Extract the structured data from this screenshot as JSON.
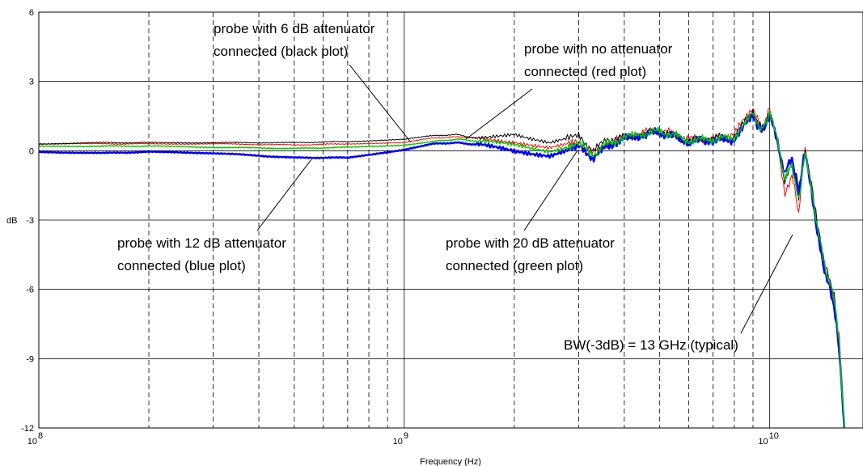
{
  "chart_data": {
    "type": "line",
    "title": "",
    "xlabel": "Frequency (Hz)",
    "ylabel": "dB",
    "xscale": "log",
    "xlim": [
      100000000,
      18000000000
    ],
    "ylim": [
      -12,
      6
    ],
    "grid": true,
    "y_ticks": [
      "6",
      "3",
      "0",
      "-3",
      "-6",
      "-9",
      "-12"
    ],
    "x_ticks": [
      {
        "base": "10",
        "exp": "8"
      },
      {
        "base": "10",
        "exp": "9"
      },
      {
        "base": "10",
        "exp": "10"
      }
    ],
    "series": [
      {
        "color": "#ff0000",
        "line_width": 1,
        "x": [
          100000000,
          150000000,
          200000000,
          300000000,
          500000000,
          700000000,
          1000000000,
          1200000000,
          1400000000,
          1600000000,
          2000000000,
          2500000000,
          3000000000,
          3300000000,
          3600000000,
          4000000000,
          4500000000,
          5000000000,
          5500000000,
          6000000000,
          7000000000,
          8000000000,
          9000000000,
          9500000000,
          10000000000,
          10500000000,
          11000000000,
          11500000000,
          12000000000,
          12500000000,
          13000000000,
          13500000000,
          14000000000,
          14500000000,
          15000000000,
          15500000000,
          16000000000
        ],
        "y": [
          0.3,
          0.3,
          0.3,
          0.3,
          0.25,
          0.3,
          0.35,
          0.55,
          0.6,
          0.55,
          0.4,
          0.1,
          0.35,
          -0.1,
          0.3,
          0.6,
          0.8,
          0.9,
          0.7,
          0.5,
          0.5,
          0.7,
          1.9,
          0.9,
          1.8,
          0.5,
          -2.0,
          -1.0,
          -2.7,
          0.2,
          -1.5,
          -3.5,
          -4.8,
          -5.7,
          -6.5,
          -8.0,
          -12.0
        ]
      },
      {
        "color": "#000000",
        "line_width": 1,
        "x": [
          100000000,
          150000000,
          200000000,
          300000000,
          500000000,
          700000000,
          1000000000,
          1200000000,
          1400000000,
          1600000000,
          2000000000,
          2500000000,
          3000000000,
          3300000000,
          3600000000,
          4000000000,
          4500000000,
          5000000000,
          5500000000,
          6000000000,
          7000000000,
          8000000000,
          9000000000,
          9500000000,
          10000000000,
          10500000000,
          11000000000,
          11500000000,
          12000000000,
          12500000000,
          13000000000,
          13500000000,
          14000000000,
          14500000000,
          15000000000,
          15500000000,
          16000000000
        ],
        "y": [
          0.3,
          0.35,
          0.35,
          0.35,
          0.35,
          0.4,
          0.5,
          0.65,
          0.7,
          0.5,
          0.75,
          0.35,
          0.6,
          0.0,
          0.5,
          0.55,
          0.7,
          0.85,
          0.6,
          0.4,
          0.55,
          0.6,
          1.7,
          0.9,
          1.6,
          0.4,
          -1.4,
          -0.5,
          -2.0,
          0.0,
          -1.3,
          -3.2,
          -4.5,
          -5.5,
          -6.2,
          -8.5,
          -12.0
        ]
      },
      {
        "color": "#0000ff",
        "line_width": 2.5,
        "x": [
          100000000,
          150000000,
          200000000,
          300000000,
          500000000,
          700000000,
          1000000000,
          1200000000,
          1400000000,
          1600000000,
          2000000000,
          2500000000,
          3000000000,
          3300000000,
          3600000000,
          4000000000,
          4500000000,
          5000000000,
          5500000000,
          6000000000,
          7000000000,
          8000000000,
          9000000000,
          9500000000,
          10000000000,
          10500000000,
          11000000000,
          11500000000,
          12000000000,
          12500000000,
          13000000000,
          13500000000,
          14000000000,
          14500000000,
          15000000000,
          15500000000,
          16000000000
        ],
        "y": [
          -0.05,
          -0.1,
          -0.05,
          -0.1,
          -0.3,
          -0.3,
          0.05,
          0.3,
          0.35,
          0.25,
          0.0,
          -0.2,
          0.15,
          -0.3,
          0.2,
          0.5,
          0.7,
          0.8,
          0.6,
          0.4,
          0.45,
          0.5,
          1.5,
          0.8,
          1.5,
          0.4,
          -1.0,
          -0.3,
          -1.8,
          0.0,
          -1.6,
          -3.6,
          -4.9,
          -5.8,
          -6.7,
          -8.6,
          -12.0
        ]
      },
      {
        "color": "#00cc00",
        "line_width": 1.5,
        "x": [
          100000000,
          150000000,
          200000000,
          300000000,
          500000000,
          700000000,
          1000000000,
          1200000000,
          1400000000,
          1600000000,
          2000000000,
          2500000000,
          3000000000,
          3300000000,
          3600000000,
          4000000000,
          4500000000,
          5000000000,
          5500000000,
          6000000000,
          7000000000,
          8000000000,
          9000000000,
          9500000000,
          10000000000,
          10500000000,
          11000000000,
          11500000000,
          12000000000,
          12500000000,
          13000000000,
          13500000000,
          14000000000,
          14500000000,
          15000000000,
          15500000000,
          16000000000
        ],
        "y": [
          0.2,
          0.2,
          0.2,
          0.15,
          0.1,
          0.15,
          0.25,
          0.4,
          0.5,
          0.4,
          0.25,
          0.0,
          0.3,
          -0.15,
          0.3,
          0.55,
          0.75,
          0.85,
          0.65,
          0.45,
          0.5,
          0.6,
          1.6,
          0.85,
          1.6,
          0.45,
          -1.2,
          -0.6,
          -2.2,
          -0.1,
          -1.5,
          -3.3,
          -4.6,
          -5.6,
          -6.3,
          -8.3,
          -12.0
        ]
      }
    ],
    "annotations": [
      {
        "lines": [
          "probe with 6 dB attenuator",
          "connected (black plot)"
        ]
      },
      {
        "lines": [
          "probe with no attenuator",
          "connected (red plot)"
        ]
      },
      {
        "lines": [
          "probe with 12 dB attenuator",
          "connected (blue plot)"
        ]
      },
      {
        "lines": [
          "probe with 20 dB attenuator",
          "connected (green plot)"
        ]
      },
      {
        "lines": [
          "BW(-3dB) = 13 GHz (typical)"
        ]
      }
    ]
  }
}
